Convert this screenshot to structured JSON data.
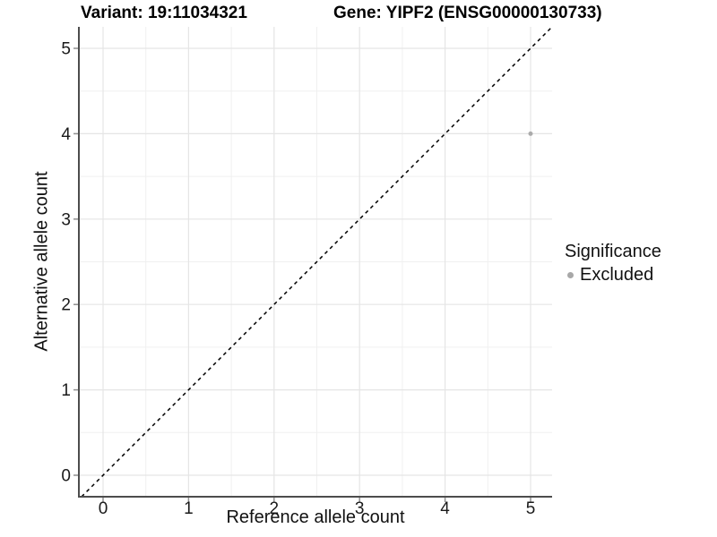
{
  "titles": {
    "variant": "Variant: 19:11034321",
    "gene": "Gene: YIPF2 (ENSG00000130733)"
  },
  "legend": {
    "title": "Significance",
    "items": [
      {
        "label": "Excluded",
        "color": "#a8a8a8"
      }
    ]
  },
  "colors": {
    "point": "#ababab",
    "grid_major": "#e5e5e5",
    "grid_minor": "#f0f0f0",
    "axis_line": "#4d4d4d",
    "tick_mark": "#8f8f8f",
    "tick_label": "#1a1a1a",
    "identity_line": "#000000"
  },
  "chart_data": {
    "type": "scatter",
    "title": "Variant: 19:11034321 / Gene: YIPF2 (ENSG00000130733)",
    "xlabel": "Reference allele count",
    "ylabel": "Alternative allele count",
    "x_ticks": [
      0,
      1,
      2,
      3,
      4,
      5
    ],
    "y_ticks": [
      0,
      1,
      2,
      3,
      4,
      5
    ],
    "xlim": [
      -0.283,
      5.252
    ],
    "ylim": [
      -0.252,
      5.252
    ],
    "grid": "on",
    "legend_position": "right",
    "series": [
      {
        "name": "Excluded",
        "color": "#ababab",
        "points": [
          {
            "x": 5,
            "y": 4
          }
        ]
      }
    ],
    "reference_line": {
      "style": "dashed",
      "slope": 1,
      "intercept": 0
    }
  }
}
